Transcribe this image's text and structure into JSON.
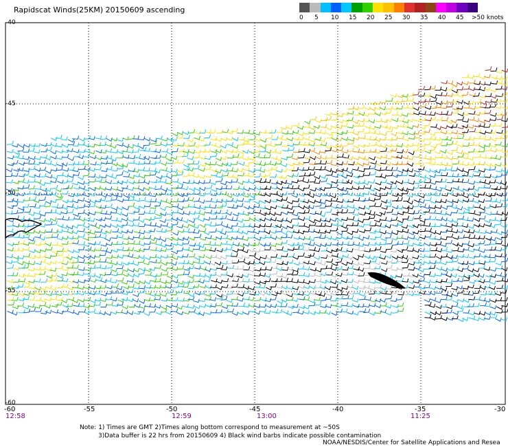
{
  "title": "Rapidscat Winds(25KM) 20150609 ascending",
  "scale": {
    "colors": [
      "#555555",
      "#bbbbbb",
      "#00bfff",
      "#0060ff",
      "#00c8ff",
      "#00a000",
      "#2fd000",
      "#ffe000",
      "#ffc000",
      "#ff8000",
      "#e03030",
      "#b22222",
      "#8b4513",
      "#ff00ff",
      "#c000e0",
      "#7000c0",
      "#3a0080"
    ],
    "labels": [
      "0",
      "5",
      "10",
      "15",
      "20",
      "25",
      "30",
      "35",
      "40",
      "45",
      ">50 knots"
    ]
  },
  "axes": {
    "lat_labels": [
      "-40",
      "-45",
      "-50",
      "-55",
      "-60"
    ],
    "lon_labels": [
      "-60",
      "-55",
      "-50",
      "-45",
      "-40",
      "-35",
      "-30"
    ]
  },
  "times": [
    "12:58",
    "12:59",
    "13:00",
    "11:25"
  ],
  "notes": {
    "line1": "Note: 1) Times are GMT 2)Times along bottom correspond to measurement at ~50S",
    "line2": "3)Data buffer is 22 hrs from 20150609 4) Black wind barbs indicate possible contamination"
  },
  "credit": "NOAA/NESDIS/Center for Satellite Applications and Resea"
}
